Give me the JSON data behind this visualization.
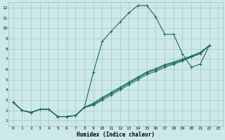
{
  "xlabel": "Humidex (Indice chaleur)",
  "bg_color": "#cce8e8",
  "grid_color": "#9fbfbf",
  "line_color": "#1a6b5a",
  "xlim": [
    -0.5,
    23.5
  ],
  "ylim": [
    0.5,
    12.5
  ],
  "xticks": [
    0,
    1,
    2,
    3,
    4,
    5,
    6,
    7,
    8,
    9,
    10,
    11,
    12,
    13,
    14,
    15,
    16,
    17,
    18,
    19,
    20,
    21,
    22,
    23
  ],
  "yticks": [
    1,
    2,
    3,
    4,
    5,
    6,
    7,
    8,
    9,
    10,
    11,
    12
  ],
  "x_vals": [
    0,
    1,
    2,
    3,
    4,
    5,
    6,
    7,
    8,
    9,
    10,
    11,
    12,
    13,
    14,
    15,
    16,
    17,
    18,
    19,
    20,
    21,
    22
  ],
  "series": [
    [
      2.8,
      2.0,
      1.8,
      2.1,
      2.1,
      1.4,
      1.4,
      1.5,
      2.3,
      5.7,
      8.7,
      9.7,
      10.6,
      11.5,
      12.2,
      12.2,
      11.1,
      9.4,
      9.4,
      7.5,
      6.2,
      6.5,
      8.3
    ],
    [
      2.8,
      2.0,
      1.8,
      2.1,
      2.1,
      1.4,
      1.4,
      1.5,
      2.3,
      2.5,
      3.0,
      3.5,
      4.0,
      4.5,
      5.0,
      5.5,
      5.8,
      6.2,
      6.5,
      6.8,
      7.2,
      7.5,
      8.3
    ],
    [
      2.8,
      2.0,
      1.8,
      2.1,
      2.1,
      1.4,
      1.4,
      1.5,
      2.3,
      2.6,
      3.15,
      3.65,
      4.15,
      4.65,
      5.15,
      5.65,
      5.95,
      6.35,
      6.6,
      6.9,
      7.25,
      7.6,
      8.3
    ],
    [
      2.8,
      2.0,
      1.8,
      2.1,
      2.1,
      1.4,
      1.4,
      1.5,
      2.3,
      2.7,
      3.25,
      3.75,
      4.25,
      4.75,
      5.25,
      5.75,
      6.05,
      6.45,
      6.7,
      7.0,
      7.3,
      7.65,
      8.3
    ]
  ],
  "marker": "+",
  "markersize": 3,
  "linewidth": 0.8,
  "xlabel_fontsize": 5.5,
  "tick_fontsize": 4.5
}
